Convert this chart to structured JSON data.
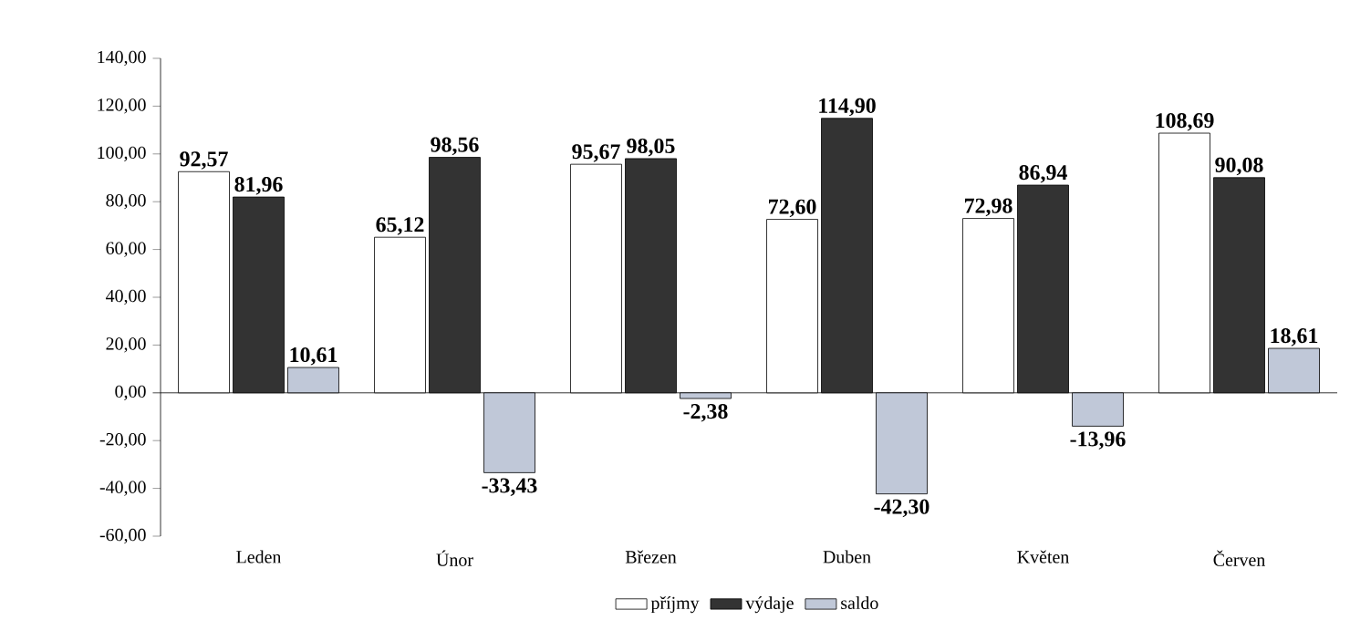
{
  "chart_data": {
    "type": "bar",
    "categories": [
      "Leden",
      "Únor",
      "Březen",
      "Duben",
      "Květen",
      "Červen"
    ],
    "series": [
      {
        "name": "příjmy",
        "color": "#ffffff",
        "values": [
          92.57,
          65.12,
          95.67,
          72.6,
          72.98,
          108.69
        ],
        "value_labels": [
          "92,57",
          "65,12",
          "95,67",
          "72,60",
          "72,98",
          "108,69"
        ]
      },
      {
        "name": "výdaje",
        "color": "#333333",
        "values": [
          81.96,
          98.56,
          98.05,
          114.9,
          86.94,
          90.08
        ],
        "value_labels": [
          "81,96",
          "98,56",
          "98,05",
          "114,90",
          "86,94",
          "90,08"
        ]
      },
      {
        "name": "saldo",
        "color": "#c0c8d8",
        "values": [
          10.61,
          -33.43,
          -2.38,
          -42.3,
          -13.96,
          18.61
        ],
        "value_labels": [
          "10,61",
          "-33,43",
          "-2,38",
          "-42,30",
          "-13,96",
          "18,61"
        ]
      }
    ],
    "ylim": [
      -60,
      140
    ],
    "yticks": [
      {
        "value": -60,
        "label": "-60,00"
      },
      {
        "value": -40,
        "label": "-40,00"
      },
      {
        "value": -20,
        "label": "-20,00"
      },
      {
        "value": 0,
        "label": "0,00"
      },
      {
        "value": 20,
        "label": "20,00"
      },
      {
        "value": 40,
        "label": "40,00"
      },
      {
        "value": 60,
        "label": "60,00"
      },
      {
        "value": 80,
        "label": "80,00"
      },
      {
        "value": 100,
        "label": "100,00"
      },
      {
        "value": 120,
        "label": "120,00"
      },
      {
        "value": 140,
        "label": "140,00"
      }
    ],
    "legend": "bottom"
  }
}
